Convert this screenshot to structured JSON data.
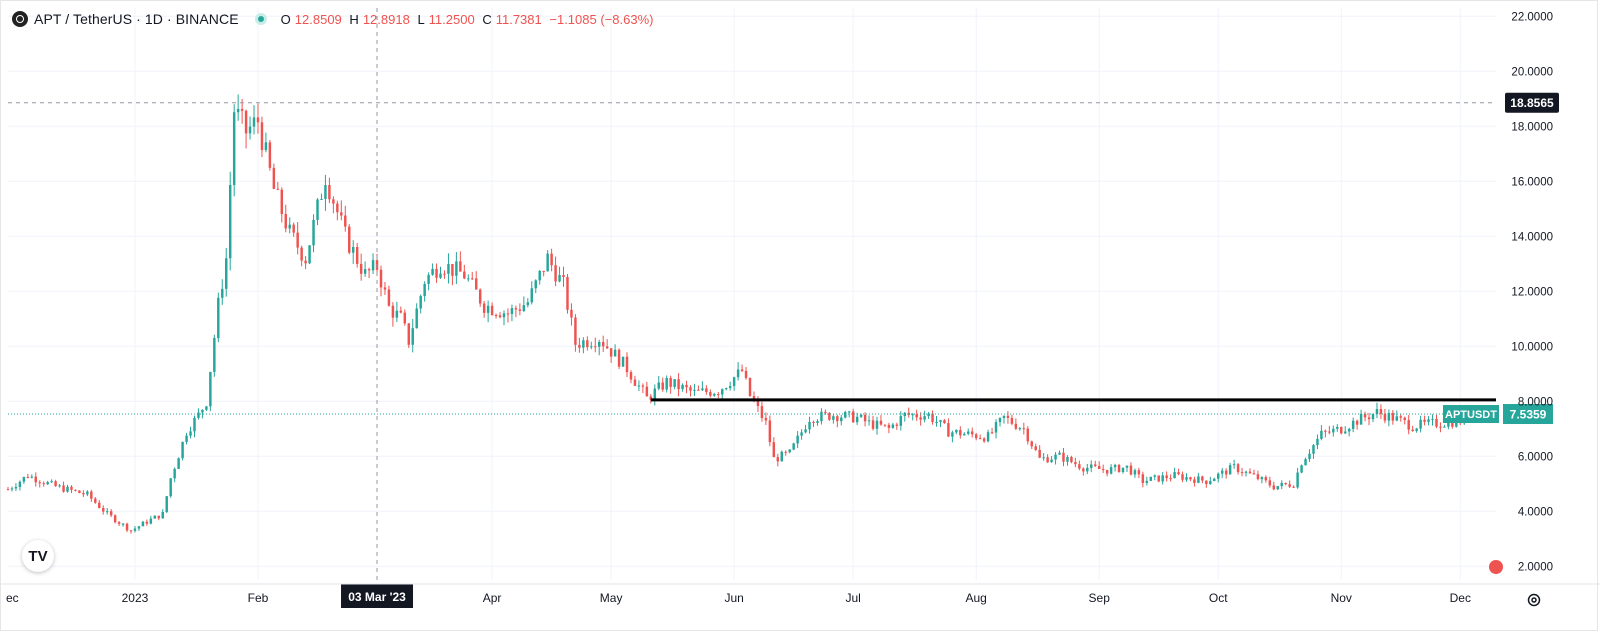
{
  "header": {
    "title": "APT / TetherUS · 1D · BINANCE",
    "open_label": "O",
    "open": "12.8509",
    "high_label": "H",
    "high": "12.8918",
    "low_label": "L",
    "low": "11.2500",
    "close_label": "C",
    "close": "11.7381",
    "change": "−1.1085 (−8.63%)"
  },
  "crosshair": {
    "date_label": "03 Mar '23",
    "price_label": "18.8565"
  },
  "last_price": {
    "symbol": "APTUSDT",
    "value": "7.5359"
  },
  "horizontal_line": {
    "price": 8.05,
    "from": "2023-05-11",
    "to": "2023-12-10",
    "color": "#000000"
  },
  "colors": {
    "up": "#26a69a",
    "down": "#ef5350",
    "grid": "#f0f3fa",
    "axis_text": "#131722",
    "crosshair_tag": "#131722"
  },
  "icons": {
    "logo": "tradingview-logo-icon",
    "settings": "gear-icon"
  },
  "chart_data": {
    "type": "candlestick",
    "title": "APT / TetherUS · 1D · BINANCE",
    "x_tick_labels": [
      "ec",
      "2023",
      "Feb",
      "03 Mar '23",
      "Apr",
      "May",
      "Jun",
      "Jul",
      "Aug",
      "Sep",
      "Oct",
      "Nov",
      "Dec"
    ],
    "y_tick_labels": [
      "2.0000",
      "4.0000",
      "6.0000",
      "8.0000",
      "10.0000",
      "12.0000",
      "14.0000",
      "16.0000",
      "18.0000",
      "20.0000",
      "22.0000"
    ],
    "ylim": [
      1.5,
      22.3
    ],
    "xlim": [
      "2022-11-30",
      "2023-12-10"
    ],
    "grid": true,
    "anchors": [
      [
        "2022-11-30",
        4.8
      ],
      [
        "2022-12-05",
        5.3
      ],
      [
        "2022-12-12",
        4.9
      ],
      [
        "2022-12-20",
        4.6
      ],
      [
        "2022-12-25",
        3.9
      ],
      [
        "2022-12-31",
        3.3
      ],
      [
        "2023-01-05",
        3.7
      ],
      [
        "2023-01-08",
        3.9
      ],
      [
        "2023-01-10",
        5.2
      ],
      [
        "2023-01-14",
        6.9
      ],
      [
        "2023-01-17",
        7.5
      ],
      [
        "2023-01-19",
        8.0
      ],
      [
        "2023-01-22",
        11.5
      ],
      [
        "2023-01-24",
        13.2
      ],
      [
        "2023-01-26",
        18.6
      ],
      [
        "2023-01-29",
        17.8
      ],
      [
        "2023-02-01",
        18.2
      ],
      [
        "2023-02-05",
        15.7
      ],
      [
        "2023-02-09",
        14.1
      ],
      [
        "2023-02-13",
        13.2
      ],
      [
        "2023-02-18",
        16.2
      ],
      [
        "2023-02-23",
        14.0
      ],
      [
        "2023-02-28",
        12.6
      ],
      [
        "2023-03-03",
        12.9
      ],
      [
        "2023-03-06",
        11.4
      ],
      [
        "2023-03-09",
        11.0
      ],
      [
        "2023-03-11",
        10.2
      ],
      [
        "2023-03-15",
        12.4
      ],
      [
        "2023-03-19",
        13.0
      ],
      [
        "2023-03-25",
        12.6
      ],
      [
        "2023-03-30",
        11.5
      ],
      [
        "2023-04-05",
        11.2
      ],
      [
        "2023-04-10",
        11.6
      ],
      [
        "2023-04-15",
        13.2
      ],
      [
        "2023-04-19",
        12.2
      ],
      [
        "2023-04-22",
        10.1
      ],
      [
        "2023-04-28",
        10.3
      ],
      [
        "2023-05-05",
        9.2
      ],
      [
        "2023-05-10",
        8.1
      ],
      [
        "2023-05-15",
        8.7
      ],
      [
        "2023-05-22",
        8.3
      ],
      [
        "2023-05-28",
        8.4
      ],
      [
        "2023-06-03",
        9.1
      ],
      [
        "2023-06-05",
        8.2
      ],
      [
        "2023-06-09",
        7.2
      ],
      [
        "2023-06-11",
        5.9
      ],
      [
        "2023-06-15",
        6.1
      ],
      [
        "2023-06-20",
        7.4
      ],
      [
        "2023-06-26",
        7.5
      ],
      [
        "2023-07-02",
        7.4
      ],
      [
        "2023-07-05",
        7.2
      ],
      [
        "2023-07-10",
        7.0
      ],
      [
        "2023-07-14",
        7.5
      ],
      [
        "2023-07-20",
        7.5
      ],
      [
        "2023-07-25",
        6.9
      ],
      [
        "2023-07-30",
        6.8
      ],
      [
        "2023-08-04",
        6.7
      ],
      [
        "2023-08-08",
        7.4
      ],
      [
        "2023-08-13",
        7.0
      ],
      [
        "2023-08-17",
        5.9
      ],
      [
        "2023-08-22",
        6.0
      ],
      [
        "2023-08-28",
        5.6
      ],
      [
        "2023-09-03",
        5.5
      ],
      [
        "2023-09-08",
        5.6
      ],
      [
        "2023-09-12",
        5.1
      ],
      [
        "2023-09-20",
        5.3
      ],
      [
        "2023-09-28",
        5.1
      ],
      [
        "2023-10-05",
        5.6
      ],
      [
        "2023-10-11",
        5.2
      ],
      [
        "2023-10-15",
        4.9
      ],
      [
        "2023-10-20",
        5.0
      ],
      [
        "2023-10-22",
        5.8
      ],
      [
        "2023-10-27",
        6.8
      ],
      [
        "2023-11-01",
        7.0
      ],
      [
        "2023-11-05",
        7.3
      ],
      [
        "2023-11-10",
        7.6
      ],
      [
        "2023-11-14",
        7.4
      ],
      [
        "2023-11-19",
        7.1
      ],
      [
        "2023-11-25",
        7.2
      ],
      [
        "2023-12-01",
        7.3
      ],
      [
        "2023-12-03",
        7.54
      ]
    ]
  }
}
